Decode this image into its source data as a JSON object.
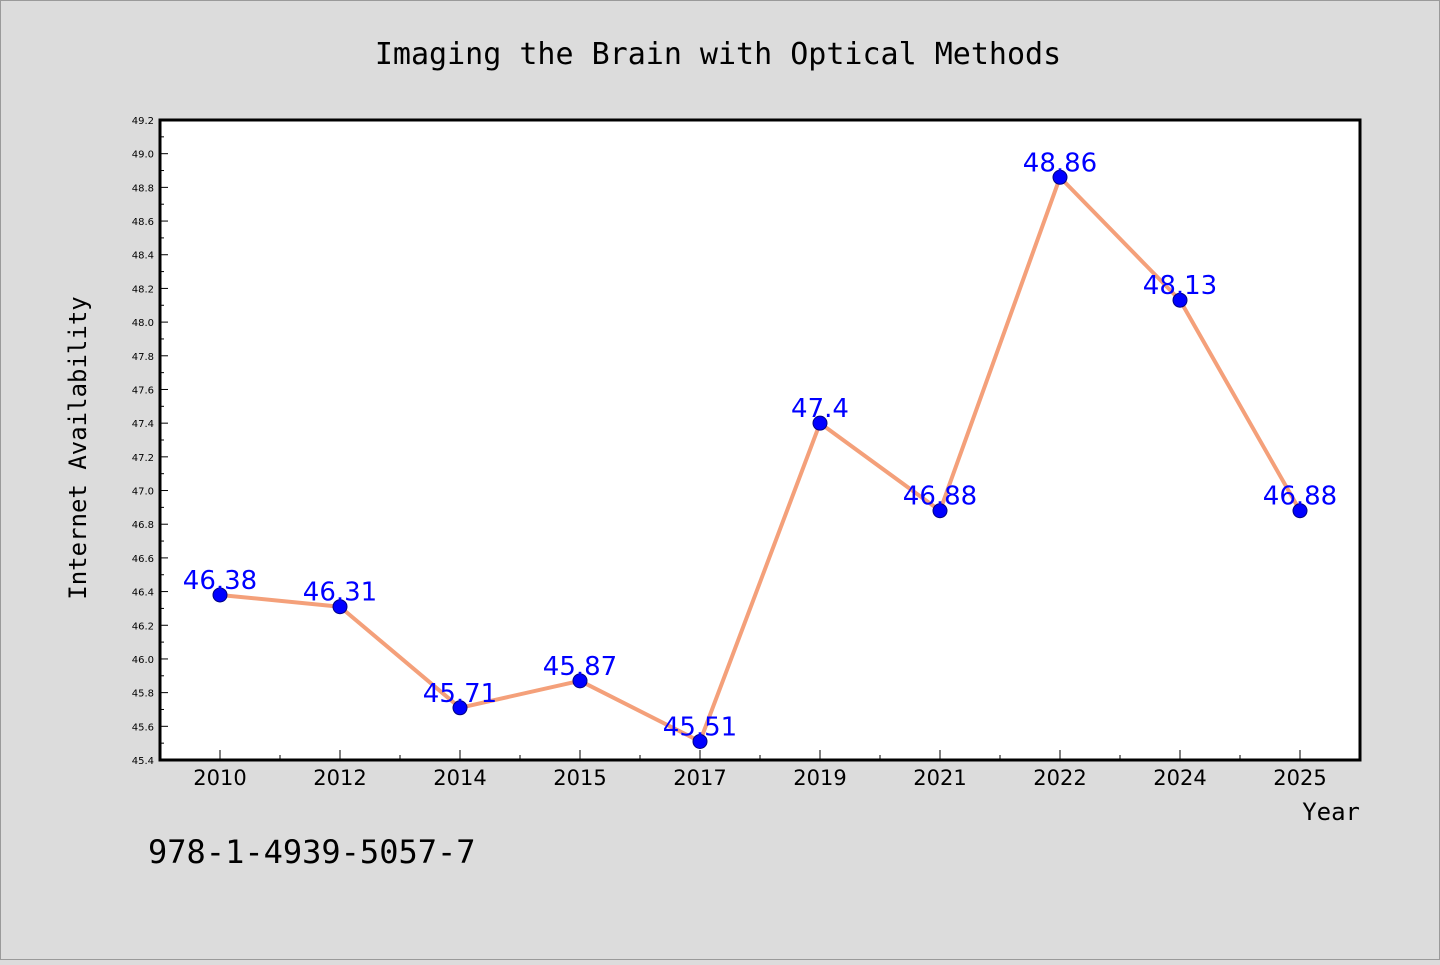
{
  "chart_data": {
    "type": "line",
    "title": "Imaging the Brain with Optical Methods",
    "xlabel": "Year",
    "ylabel": "Internet Availability",
    "categories": [
      "2010",
      "2012",
      "2014",
      "2015",
      "2017",
      "2019",
      "2021",
      "2022",
      "2024",
      "2025"
    ],
    "series": [
      {
        "values": [
          46.38,
          46.31,
          45.71,
          45.87,
          45.51,
          47.4,
          46.88,
          48.86,
          48.13,
          46.88
        ],
        "data_labels": [
          "46.38",
          "46.31",
          "45.71",
          "45.87",
          "45.51",
          "47.4",
          "46.88",
          "48.86",
          "48.13",
          "46.88"
        ]
      }
    ],
    "ylim": [
      45.4,
      49.2
    ],
    "yticks": [
      "45.4",
      "45.6",
      "45.8",
      "46.0",
      "46.2",
      "46.4",
      "46.6",
      "46.8",
      "47.0",
      "47.2",
      "47.4",
      "47.6",
      "47.8",
      "48.0",
      "48.2",
      "48.4",
      "48.6",
      "48.8",
      "49.0",
      "49.2"
    ],
    "grid": false,
    "legend": "none"
  },
  "colors": {
    "background": "#dcdcdc",
    "plot_background": "#ffffff",
    "line": "#f4a07a",
    "marker_fill": "#0000ff",
    "marker_stroke": "#000080",
    "data_label": "#0000ff",
    "axis": "#000000"
  },
  "footer_text": "978-1-4939-5057-7"
}
